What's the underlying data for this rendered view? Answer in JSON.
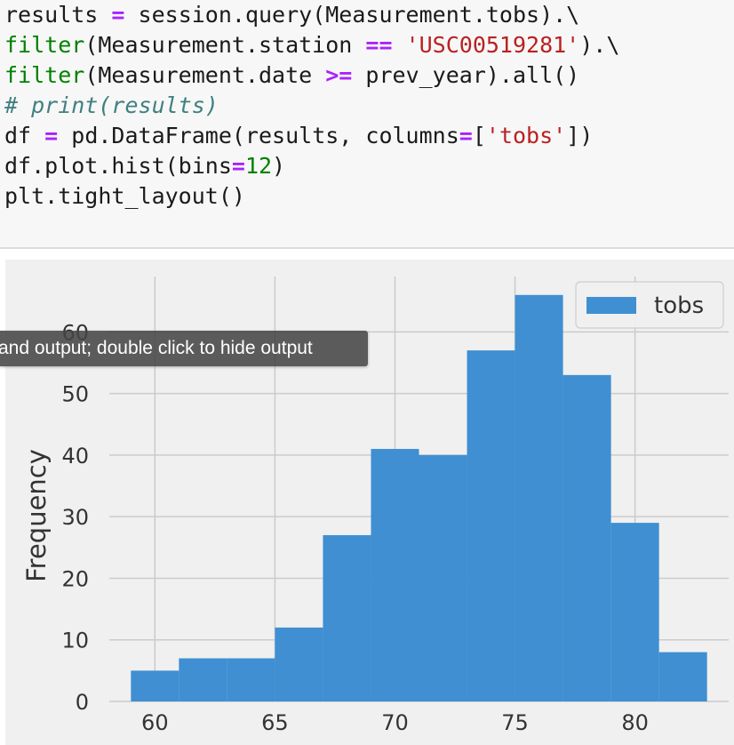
{
  "code_cell": {
    "lines": [
      [
        {
          "t": "results ",
          "c": ""
        },
        {
          "t": "=",
          "c": "t-op"
        },
        {
          "t": " session.query(Measurement.tobs).\\",
          "c": ""
        }
      ],
      [
        {
          "t": "filter",
          "c": "t-fn"
        },
        {
          "t": "(Measurement.station ",
          "c": ""
        },
        {
          "t": "==",
          "c": "t-op"
        },
        {
          "t": " ",
          "c": ""
        },
        {
          "t": "'USC00519281'",
          "c": "t-str"
        },
        {
          "t": ").\\",
          "c": ""
        }
      ],
      [
        {
          "t": "filter",
          "c": "t-fn"
        },
        {
          "t": "(Measurement.date ",
          "c": ""
        },
        {
          "t": ">=",
          "c": "t-op"
        },
        {
          "t": " prev_year).all()",
          "c": ""
        }
      ],
      [
        {
          "t": "# print(results)",
          "c": "t-comment"
        }
      ],
      [
        {
          "t": "df ",
          "c": ""
        },
        {
          "t": "=",
          "c": "t-op"
        },
        {
          "t": " pd.DataFrame(results, columns",
          "c": ""
        },
        {
          "t": "=",
          "c": "t-op"
        },
        {
          "t": "[",
          "c": ""
        },
        {
          "t": "'tobs'",
          "c": "t-str"
        },
        {
          "t": "])",
          "c": ""
        }
      ],
      [
        {
          "t": "df.plot.hist(bins",
          "c": ""
        },
        {
          "t": "=",
          "c": "t-op"
        },
        {
          "t": "12",
          "c": "t-num"
        },
        {
          "t": ")",
          "c": ""
        }
      ],
      [
        {
          "t": "plt.tight_layout()",
          "c": ""
        }
      ]
    ]
  },
  "tooltip": {
    "text": "and output; double click to hide output"
  },
  "colors": {
    "bar": "#3f8fd2",
    "plot_bg": "#f0f0f0",
    "grid": "#cbcbcb",
    "text": "#333333"
  },
  "chart_data": {
    "type": "bar",
    "style": "histogram",
    "bins": [
      {
        "start": 59.0,
        "end": 61.0,
        "value": 5
      },
      {
        "start": 61.0,
        "end": 63.0,
        "value": 7
      },
      {
        "start": 63.0,
        "end": 65.0,
        "value": 7
      },
      {
        "start": 65.0,
        "end": 67.0,
        "value": 12
      },
      {
        "start": 67.0,
        "end": 69.0,
        "value": 27
      },
      {
        "start": 69.0,
        "end": 71.0,
        "value": 41
      },
      {
        "start": 71.0,
        "end": 73.0,
        "value": 40
      },
      {
        "start": 73.0,
        "end": 75.0,
        "value": 57
      },
      {
        "start": 75.0,
        "end": 77.0,
        "value": 66
      },
      {
        "start": 77.0,
        "end": 79.0,
        "value": 53
      },
      {
        "start": 79.0,
        "end": 81.0,
        "value": 29
      },
      {
        "start": 81.0,
        "end": 83.0,
        "value": 8
      }
    ],
    "series": [
      {
        "name": "tobs"
      }
    ],
    "ylabel": "Frequency",
    "xlabel": "",
    "xlim": [
      58.1,
      83.9
    ],
    "ylim": [
      0,
      69
    ],
    "xticks": [
      60,
      65,
      70,
      75,
      80
    ],
    "yticks": [
      0,
      10,
      20,
      30,
      40,
      50,
      60
    ],
    "grid": true,
    "legend": "top-right"
  }
}
